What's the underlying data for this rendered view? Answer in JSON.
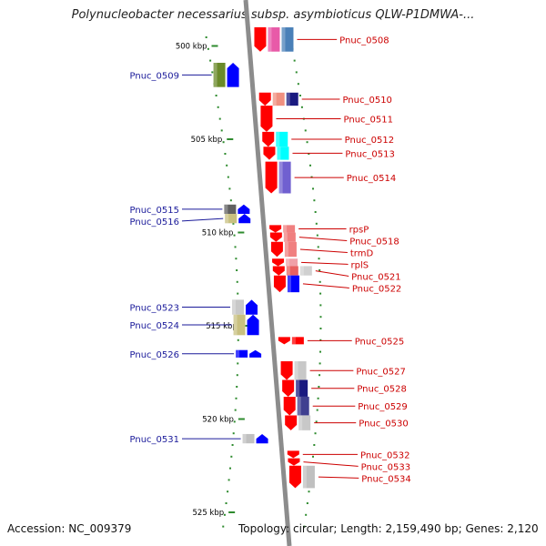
{
  "title": "Polynucleobacter necessarius subsp. asymbioticus QLW-P1DMWA-...",
  "footer": {
    "accession": "Accession: NC_009379",
    "summary": "Topology: circular; Length: 2,159,490 bp; Genes: 2,120"
  },
  "colors": {
    "backbone": "#8c8c8c",
    "forward_label": "#1a1a9a",
    "reverse_label": "#cc0000",
    "tick": "#2e8b2e",
    "scale_text": "#000000"
  },
  "scale": {
    "unit": "kbp",
    "ticks": [
      {
        "label": "500 kbp",
        "kbp": 500
      },
      {
        "label": "505 kbp",
        "kbp": 505
      },
      {
        "label": "510 kbp",
        "kbp": 510
      },
      {
        "label": "515 kbp",
        "kbp": 515
      },
      {
        "label": "520 kbp",
        "kbp": 520
      },
      {
        "label": "525 kbp",
        "kbp": 525
      }
    ]
  },
  "genes": [
    {
      "name": "Pnuc_0508",
      "strand": "reverse",
      "start_kbp": 499.1,
      "end_kbp": 500.4,
      "colors": [
        "#ff0000",
        "#e85aa8",
        "#4a80b8"
      ]
    },
    {
      "name": "Pnuc_0509",
      "strand": "forward",
      "start_kbp": 501.0,
      "end_kbp": 502.3,
      "colors": [
        "#6a8a2a",
        "#0000ff"
      ]
    },
    {
      "name": "Pnuc_0510",
      "strand": "reverse",
      "start_kbp": 502.6,
      "end_kbp": 503.3,
      "colors": [
        "#ff0000",
        "#f09080",
        "#1a1a80"
      ]
    },
    {
      "name": "Pnuc_0511",
      "strand": "reverse",
      "start_kbp": 503.3,
      "end_kbp": 504.7,
      "colors": [
        "#ff0000"
      ]
    },
    {
      "name": "Pnuc_0512",
      "strand": "reverse",
      "start_kbp": 504.7,
      "end_kbp": 505.5,
      "colors": [
        "#ff0000",
        "#00ffff"
      ]
    },
    {
      "name": "Pnuc_0513",
      "strand": "reverse",
      "start_kbp": 505.5,
      "end_kbp": 506.2,
      "colors": [
        "#ff0000",
        "#00ffff"
      ]
    },
    {
      "name": "Pnuc_0514",
      "strand": "reverse",
      "start_kbp": 506.3,
      "end_kbp": 508.0,
      "colors": [
        "#ff0000",
        "#7060d0"
      ]
    },
    {
      "name": "Pnuc_0515",
      "strand": "forward",
      "start_kbp": 508.6,
      "end_kbp": 509.1,
      "colors": [
        "#606060",
        "#0000ff"
      ]
    },
    {
      "name": "Pnuc_0516",
      "strand": "forward",
      "start_kbp": 509.1,
      "end_kbp": 509.6,
      "colors": [
        "#c8c080",
        "#0000ff"
      ]
    },
    {
      "name": "rpsP",
      "strand": "reverse",
      "start_kbp": 509.7,
      "end_kbp": 510.1,
      "colors": [
        "#ff0000",
        "#f08080"
      ]
    },
    {
      "name": "Pnuc_0518",
      "strand": "reverse",
      "start_kbp": 510.1,
      "end_kbp": 510.6,
      "colors": [
        "#ff0000",
        "#f08080"
      ]
    },
    {
      "name": "trmD",
      "strand": "reverse",
      "start_kbp": 510.6,
      "end_kbp": 511.4,
      "colors": [
        "#ff0000",
        "#f08080"
      ]
    },
    {
      "name": "rplS",
      "strand": "reverse",
      "start_kbp": 511.5,
      "end_kbp": 511.9,
      "colors": [
        "#ff0000",
        "#f0a0a8"
      ]
    },
    {
      "name": "Pnuc_0521",
      "strand": "reverse",
      "start_kbp": 511.9,
      "end_kbp": 512.4,
      "colors": [
        "#ff0000",
        "#e86060",
        "#d0d0d0"
      ]
    },
    {
      "name": "Pnuc_0522",
      "strand": "reverse",
      "start_kbp": 512.4,
      "end_kbp": 513.3,
      "colors": [
        "#ff0000",
        "#0000ff"
      ]
    },
    {
      "name": "Pnuc_0523",
      "strand": "forward",
      "start_kbp": 513.7,
      "end_kbp": 514.5,
      "colors": [
        "#c8c8c8",
        "#0000ff"
      ]
    },
    {
      "name": "Pnuc_0524",
      "strand": "forward",
      "start_kbp": 514.5,
      "end_kbp": 515.6,
      "colors": [
        "#c8c080",
        "#0000ff"
      ]
    },
    {
      "name": "Pnuc_0525",
      "strand": "reverse",
      "start_kbp": 515.7,
      "end_kbp": 516.0,
      "colors": [
        "#ff0000",
        "#ff0000"
      ]
    },
    {
      "name": "Pnuc_0526",
      "strand": "forward",
      "start_kbp": 516.4,
      "end_kbp": 516.8,
      "colors": [
        "#0000ff",
        "#0000ff"
      ]
    },
    {
      "name": "Pnuc_0527",
      "strand": "reverse",
      "start_kbp": 517.0,
      "end_kbp": 518.0,
      "colors": [
        "#ff0000",
        "#c8c8c8"
      ]
    },
    {
      "name": "Pnuc_0528",
      "strand": "reverse",
      "start_kbp": 518.0,
      "end_kbp": 518.9,
      "colors": [
        "#ff0000",
        "#1a1a80"
      ]
    },
    {
      "name": "Pnuc_0529",
      "strand": "reverse",
      "start_kbp": 518.9,
      "end_kbp": 519.9,
      "colors": [
        "#ff0000",
        "#404090"
      ]
    },
    {
      "name": "Pnuc_0530",
      "strand": "reverse",
      "start_kbp": 519.9,
      "end_kbp": 520.7,
      "colors": [
        "#ff0000",
        "#c8c8c8"
      ]
    },
    {
      "name": "Pnuc_0531",
      "strand": "forward",
      "start_kbp": 520.9,
      "end_kbp": 521.4,
      "colors": [
        "#c0c0c0",
        "#0000ff"
      ]
    },
    {
      "name": "Pnuc_0532",
      "strand": "reverse",
      "start_kbp": 521.8,
      "end_kbp": 522.0,
      "colors": [
        "#ff0000"
      ]
    },
    {
      "name": "Pnuc_0533",
      "strand": "reverse",
      "start_kbp": 522.2,
      "end_kbp": 522.4,
      "colors": [
        "#ff0000"
      ]
    },
    {
      "name": "Pnuc_0534",
      "strand": "reverse",
      "start_kbp": 522.6,
      "end_kbp": 523.8,
      "colors": [
        "#ff0000",
        "#c0c0c0"
      ]
    }
  ]
}
